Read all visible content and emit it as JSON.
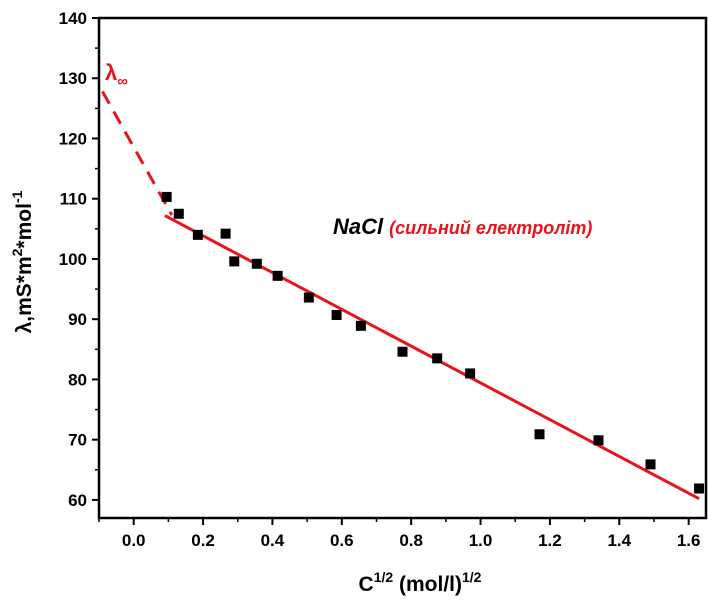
{
  "chart_data": {
    "type": "scatter",
    "xlabel": {
      "base": "C",
      "sup1": "1/2",
      "mid": " (mol/l)",
      "sup2": "1/2"
    },
    "ylabel": {
      "part1": "λ,mS*m",
      "sup1": "2",
      "part2": "*mol",
      "sup2": "-1"
    },
    "xlim": [
      -0.1,
      1.65
    ],
    "ylim": [
      57,
      140
    ],
    "x_ticks": [
      "0.0",
      "0.2",
      "0.4",
      "0.6",
      "0.8",
      "1.0",
      "1.2",
      "1.4",
      "1.6"
    ],
    "y_ticks": [
      "60",
      "70",
      "80",
      "90",
      "100",
      "110",
      "120",
      "130",
      "140"
    ],
    "annotation": {
      "name": "NaCl",
      "note": "(сильний електроліт)"
    },
    "lambda_label": {
      "symbol": "λ",
      "sub": "∞"
    },
    "series": [
      {
        "points": [
          [
            0.095,
            110.3
          ],
          [
            0.13,
            107.5
          ],
          [
            0.185,
            104.0
          ],
          [
            0.265,
            104.2
          ],
          [
            0.29,
            99.6
          ],
          [
            0.355,
            99.2
          ],
          [
            0.415,
            97.2
          ],
          [
            0.505,
            93.6
          ],
          [
            0.585,
            90.7
          ],
          [
            0.655,
            88.9
          ],
          [
            0.775,
            84.6
          ],
          [
            0.875,
            83.5
          ],
          [
            0.97,
            81.0
          ],
          [
            1.17,
            70.9
          ],
          [
            1.34,
            69.9
          ],
          [
            1.49,
            65.9
          ],
          [
            1.63,
            61.9
          ]
        ]
      }
    ],
    "fit_line": {
      "x": [
        0.09,
        1.63
      ],
      "y": [
        107.2,
        60.2
      ]
    },
    "extrapolation": {
      "x": [
        -0.09,
        0.11
      ],
      "y": [
        127.8,
        107.3
      ]
    },
    "colors": {
      "fit": "#e8141c",
      "points": "#000000",
      "axis": "#000000"
    }
  }
}
